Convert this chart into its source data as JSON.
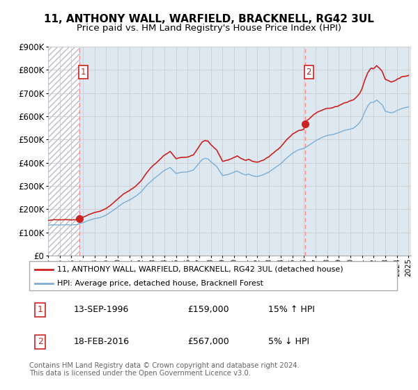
{
  "title": "11, ANTHONY WALL, WARFIELD, BRACKNELL, RG42 3UL",
  "subtitle": "Price paid vs. HM Land Registry's House Price Index (HPI)",
  "ylim": [
    0,
    900000
  ],
  "yticks": [
    0,
    100000,
    200000,
    300000,
    400000,
    500000,
    600000,
    700000,
    800000,
    900000
  ],
  "ytick_labels": [
    "£0",
    "£100K",
    "£200K",
    "£300K",
    "£400K",
    "£500K",
    "£600K",
    "£700K",
    "£800K",
    "£900K"
  ],
  "xlim_start": 1994.0,
  "xlim_end": 2025.2,
  "hpi_color": "#7dadd4",
  "price_color": "#cc2222",
  "dashed_color": "#ff8888",
  "marker_color": "#cc2222",
  "transaction1_x": 1996.71,
  "transaction1_y": 159000,
  "transaction2_x": 2016.12,
  "transaction2_y": 567000,
  "legend_label1": "11, ANTHONY WALL, WARFIELD, BRACKNELL, RG42 3UL (detached house)",
  "legend_label2": "HPI: Average price, detached house, Bracknell Forest",
  "table_row1": [
    "1",
    "13-SEP-1996",
    "£159,000",
    "15% ↑ HPI"
  ],
  "table_row2": [
    "2",
    "18-FEB-2016",
    "£567,000",
    "5% ↓ HPI"
  ],
  "footer": "Contains HM Land Registry data © Crown copyright and database right 2024.\nThis data is licensed under the Open Government Licence v3.0.",
  "hatch_color": "#d8d8e8",
  "blue_bg_color": "#dde8f0",
  "grid_color": "#cccccc",
  "title_fontsize": 11,
  "subtitle_fontsize": 9.5,
  "axis_fontsize": 8.5
}
